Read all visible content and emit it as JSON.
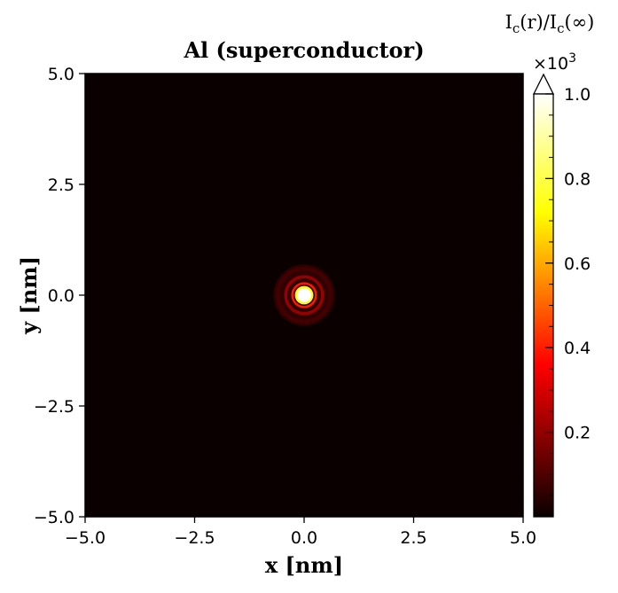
{
  "chart_data": {
    "type": "heatmap",
    "title": "Al (superconductor)",
    "xlabel": "x [nm]",
    "ylabel": "y [nm]",
    "xlim": [
      -5.0,
      5.0
    ],
    "ylim": [
      -5.0,
      5.0
    ],
    "x_ticks": [
      -5.0,
      -2.5,
      0.0,
      2.5,
      5.0
    ],
    "x_tick_labels": [
      "−5.0",
      "−2.5",
      "0.0",
      "2.5",
      "5.0"
    ],
    "y_ticks": [
      -5.0,
      -2.5,
      0.0,
      2.5,
      5.0
    ],
    "y_tick_labels": [
      "−5.0",
      "−2.5",
      "0.0",
      "2.5",
      "5.0"
    ],
    "grid": false,
    "colormap": "hot",
    "colorbar": {
      "label": "I_c(r)/I_c(∞)",
      "label_main": "I",
      "label_sub": "c",
      "label_mid": "(r)/I",
      "label_sub2": "c",
      "label_end": "(∞)",
      "scale_note": "×10",
      "scale_exp": "3",
      "range": [
        0.0,
        1.0
      ],
      "ticks": [
        0.2,
        0.4,
        0.6,
        0.8,
        1.0
      ],
      "tick_labels": [
        "0.2",
        "0.4",
        "0.6",
        "0.8",
        "1.0"
      ],
      "extend": "max"
    },
    "features": {
      "center": [
        0.0,
        0.0
      ],
      "core_radius_nm": 0.16,
      "rings": [
        {
          "radius_nm": 0.27,
          "value": 0.4
        },
        {
          "radius_nm": 0.42,
          "value": 0.2
        },
        {
          "radius_nm": 0.6,
          "value": 0.08
        }
      ],
      "background_value": 0.0
    }
  }
}
